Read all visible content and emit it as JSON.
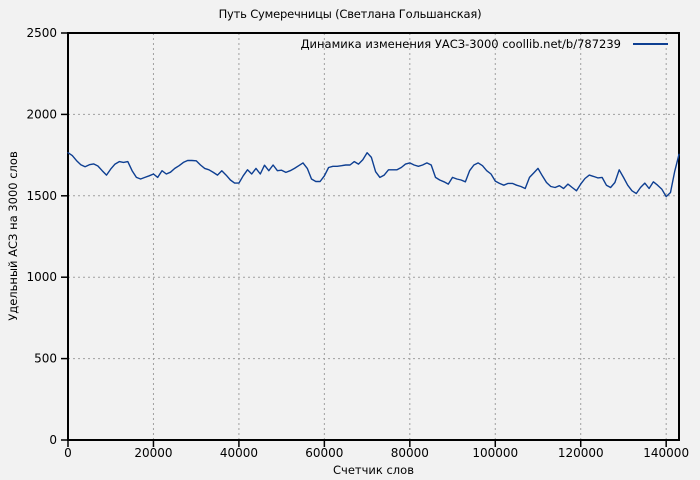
{
  "chart_data": {
    "type": "line",
    "title": "Путь Сумеречницы (Светлана Гольшанская)",
    "series": [
      {
        "name": "Динамика изменения УАСЗ-3000 coollib.net/b/787239",
        "x_start": 0,
        "x_step": 1000,
        "values": [
          1765,
          1747,
          1716,
          1691,
          1679,
          1691,
          1696,
          1683,
          1654,
          1627,
          1664,
          1695,
          1710,
          1705,
          1710,
          1654,
          1613,
          1603,
          1613,
          1623,
          1634,
          1613,
          1654,
          1634,
          1645,
          1668,
          1685,
          1705,
          1717,
          1717,
          1715,
          1689,
          1668,
          1660,
          1644,
          1627,
          1654,
          1627,
          1597,
          1578,
          1578,
          1623,
          1660,
          1634,
          1668,
          1634,
          1688,
          1654,
          1689,
          1654,
          1657,
          1644,
          1654,
          1668,
          1685,
          1702,
          1668,
          1603,
          1588,
          1588,
          1623,
          1674,
          1681,
          1681,
          1685,
          1689,
          1689,
          1710,
          1695,
          1722,
          1765,
          1736,
          1648,
          1613,
          1627,
          1660,
          1660,
          1660,
          1674,
          1695,
          1702,
          1689,
          1681,
          1689,
          1702,
          1689,
          1613,
          1597,
          1586,
          1572,
          1613,
          1603,
          1597,
          1586,
          1654,
          1689,
          1702,
          1685,
          1654,
          1634,
          1590,
          1576,
          1565,
          1576,
          1576,
          1565,
          1557,
          1545,
          1613,
          1640,
          1668,
          1623,
          1582,
          1557,
          1551,
          1562,
          1545,
          1572,
          1551,
          1531,
          1572,
          1606,
          1627,
          1619,
          1610,
          1613,
          1565,
          1551,
          1582,
          1660,
          1613,
          1565,
          1531,
          1514,
          1551,
          1578,
          1545,
          1586,
          1565,
          1540,
          1495,
          1520,
          1650,
          1755
        ]
      }
    ],
    "xlabel": "Счетчик слов",
    "ylabel": "Удельный АСЗ на 3000 слов",
    "xlim": [
      0,
      143000
    ],
    "ylim": [
      0,
      2500
    ],
    "x_ticks": [
      0,
      20000,
      40000,
      60000,
      80000,
      100000,
      120000,
      140000
    ],
    "y_ticks": [
      0,
      500,
      1000,
      1500,
      2000,
      2500
    ],
    "grid": true,
    "legend_position": "top-right-inside",
    "colors": {
      "background": "#f2f2f2",
      "line": "#0e3f92",
      "grid": "#a0a0a0",
      "border": "#000000",
      "text": "#000000"
    }
  }
}
